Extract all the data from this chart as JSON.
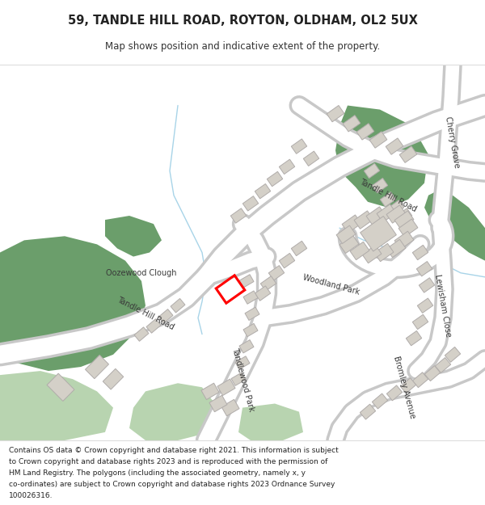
{
  "title_line1": "59, TANDLE HILL ROAD, ROYTON, OLDHAM, OL2 5UX",
  "title_line2": "Map shows position and indicative extent of the property.",
  "footer_text": "Contains OS data © Crown copyright and database right 2021. This information is subject to Crown copyright and database rights 2023 and is reproduced with the permission of HM Land Registry. The polygons (including the associated geometry, namely x, y co-ordinates) are subject to Crown copyright and database rights 2023 Ordnance Survey 100026316.",
  "bg_color": "#f7f6f4",
  "road_color": "#ffffff",
  "road_outline_color": "#c8c8c8",
  "green_dark": "#6b9e6b",
  "green_light": "#b8d4b0",
  "building_color": "#d4d0c8",
  "building_outline": "#b0acaa",
  "highlight_color": "#ff0000",
  "water_color": "#b0d8e8",
  "text_color": "#333333"
}
